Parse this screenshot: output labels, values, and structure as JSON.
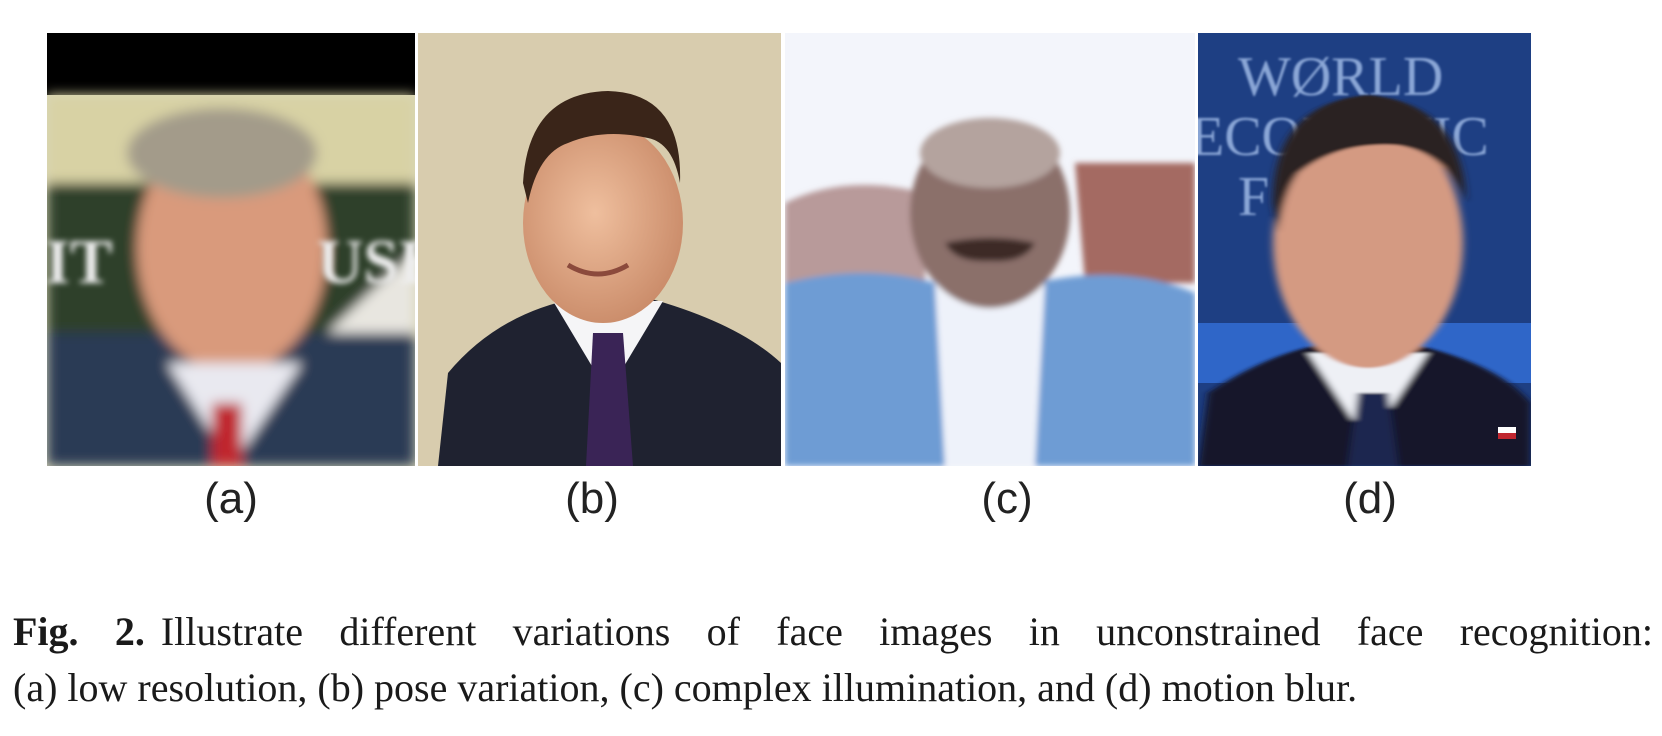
{
  "panels": [
    {
      "label": "(a)",
      "variation": "low resolution",
      "overlay_text": [
        "IT",
        "USE"
      ]
    },
    {
      "label": "(b)",
      "variation": "pose variation"
    },
    {
      "label": "(c)",
      "variation": "complex illumination"
    },
    {
      "label": "(d)",
      "variation": "motion blur",
      "overlay_text": [
        "WØRLD",
        "ECONOMIC",
        "F"
      ]
    }
  ],
  "caption": {
    "fig_label": "Fig. 2.",
    "line1": "Illustrate different variations of face images in unconstrained face recognition:",
    "line2": "(a) low resolution, (b) pose variation, (c) complex illumination, and (d) motion blur."
  }
}
